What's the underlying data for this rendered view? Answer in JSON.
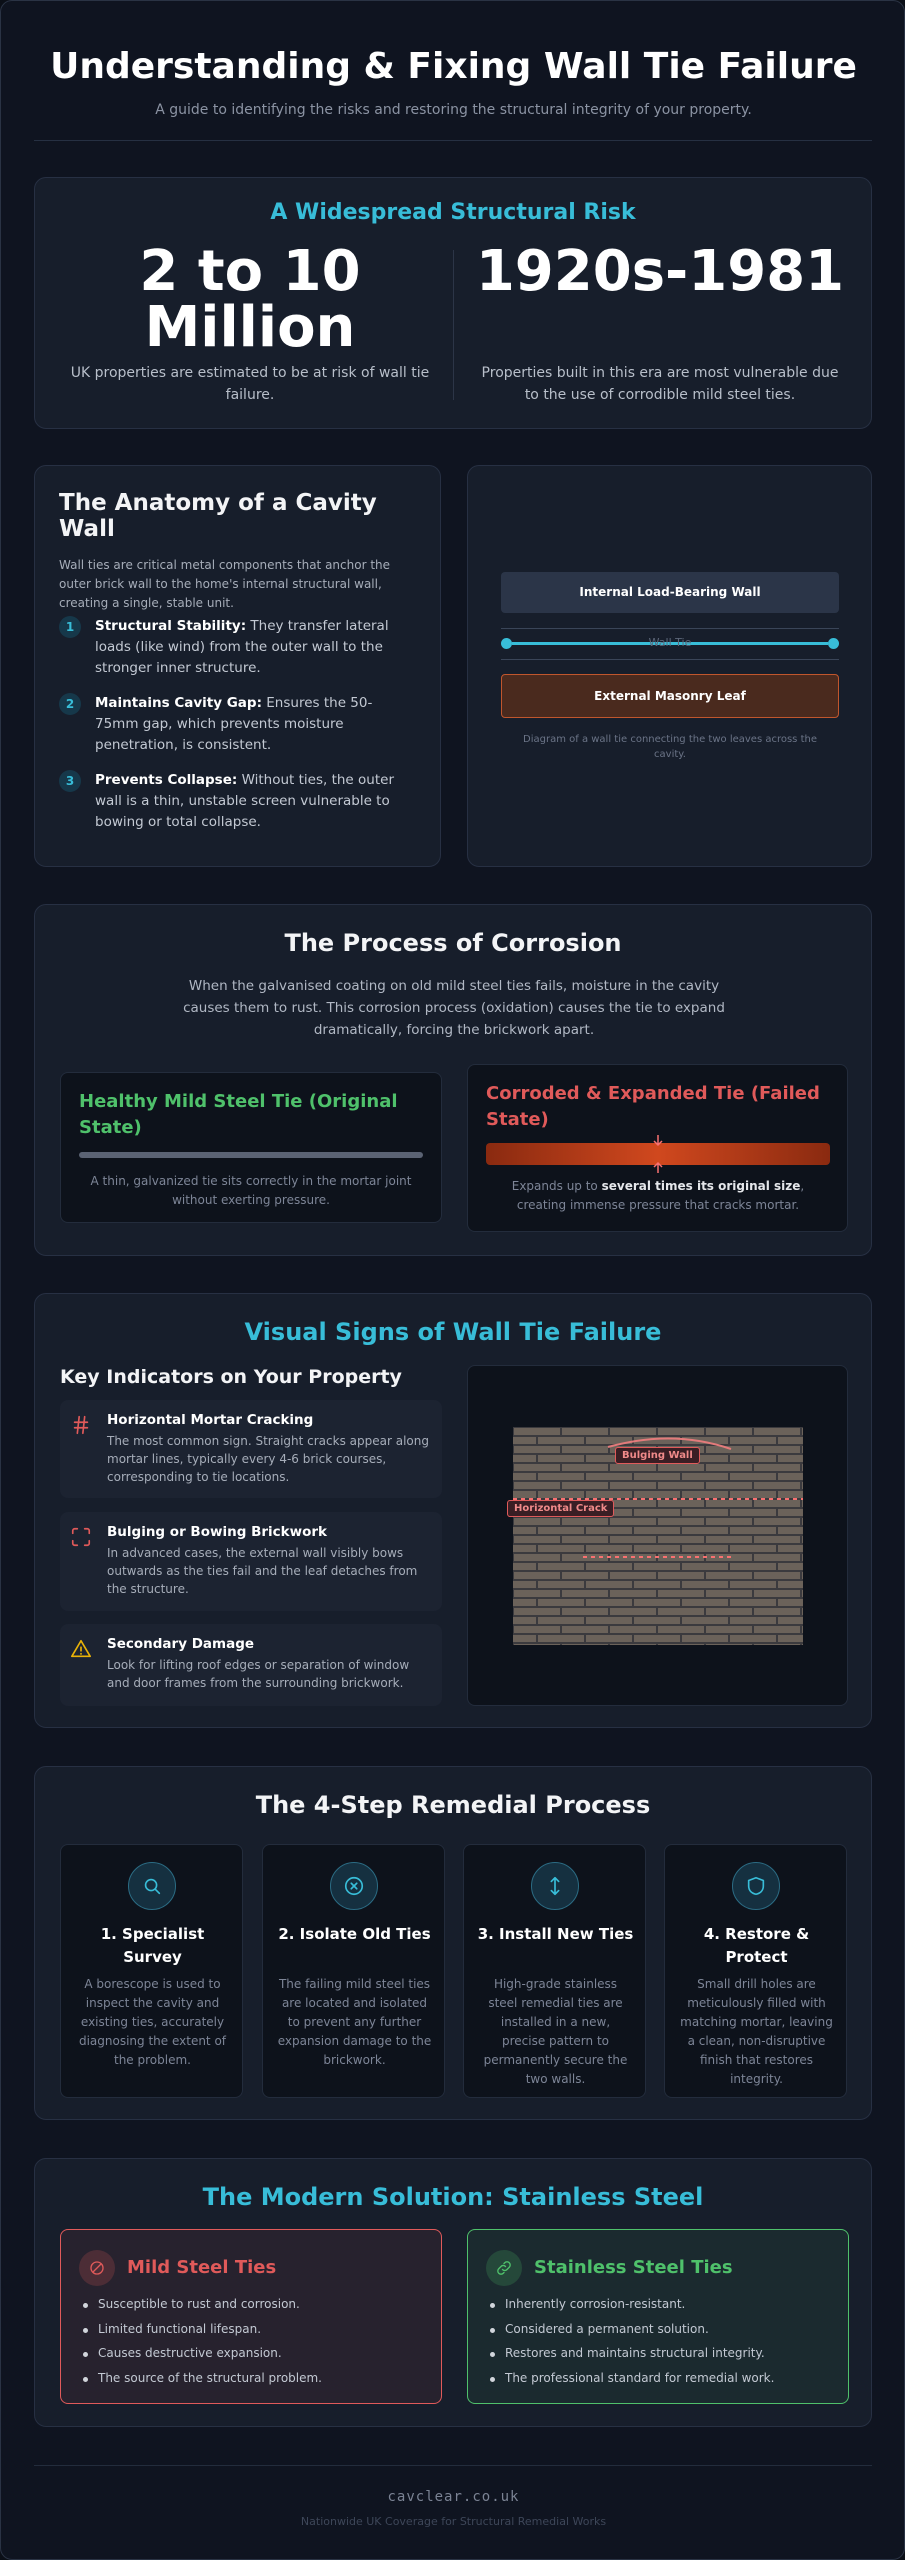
{
  "header": {
    "title": "Understanding & Fixing Wall Tie Failure",
    "subtitle": "A guide to identifying the risks and restoring the structural integrity of your property."
  },
  "risk": {
    "title": "A Widespread Structural Risk",
    "stats": [
      {
        "value": "2 to 10 Million",
        "description": "UK properties are estimated to be at risk of wall tie failure."
      },
      {
        "value": "1920s-1981",
        "description": "Properties built in this era are most vulnerable due to the use of corrodible mild steel ties."
      }
    ]
  },
  "anatomy": {
    "title": "The Anatomy of a Cavity Wall",
    "intro": "Wall ties are critical metal components that anchor the outer brick wall to the home's internal structural wall, creating a single, stable unit.",
    "points": [
      {
        "number": "1",
        "label": "Structural Stability:",
        "text": "They transfer lateral loads (like wind) from the outer wall to the stronger inner structure."
      },
      {
        "number": "2",
        "label": "Maintains Cavity Gap:",
        "text": "Ensures the 50-75mm gap, which prevents moisture penetration, is consistent."
      },
      {
        "number": "3",
        "label": "Prevents Collapse:",
        "text": "Without ties, the outer wall is a thin, unstable screen vulnerable to bowing or total collapse."
      }
    ],
    "diagram": {
      "inner": "Internal Load-Bearing Wall",
      "tie": "Wall Tie",
      "outer": "External Masonry Leaf",
      "caption": "Diagram of a wall tie connecting the two leaves across the cavity."
    }
  },
  "corrosion": {
    "title": "The Process of Corrosion",
    "intro": "When the galvanised coating on old mild steel ties fails, moisture in the cavity causes them to rust. This corrosion process (oxidation) causes the tie to expand dramatically, forcing the brickwork apart.",
    "healthy": {
      "title": "Healthy Mild Steel Tie (Original State)",
      "caption": "A thin, galvanized tie sits correctly in the mortar joint without exerting pressure."
    },
    "corroded": {
      "title": "Corroded & Expanded Tie (Failed State)",
      "caption_before": "Expands up to ",
      "caption_bold": "several times its original size",
      "caption_after": ", creating immense pressure that cracks mortar."
    }
  },
  "signs": {
    "title": "Visual Signs of Wall Tie Failure",
    "subtitle": "Key Indicators on Your Property",
    "indicators": [
      {
        "title": "Horizontal Mortar Cracking",
        "text": "The most common sign. Straight cracks appear along mortar lines, typically every 4-6 brick courses, corresponding to tie locations."
      },
      {
        "title": "Bulging or Bowing Brickwork",
        "text": "In advanced cases, the external wall visibly bows outwards as the ties fail and the leaf detaches from the structure."
      },
      {
        "title": "Secondary Damage",
        "text": "Look for lifting roof edges or separation of window and door frames from the surrounding brickwork."
      }
    ],
    "labels": {
      "bulging": "Bulging Wall",
      "crack": "Horizontal Crack"
    }
  },
  "remedial": {
    "title": "The 4-Step Remedial Process",
    "steps": [
      {
        "title": "1. Specialist Survey",
        "text": "A borescope is used to inspect the cavity and existing ties, accurately diagnosing the extent of the problem."
      },
      {
        "title": "2. Isolate Old Ties",
        "text": "The failing mild steel ties are located and isolated to prevent any further expansion damage to the brickwork."
      },
      {
        "title": "3. Install New Ties",
        "text": "High-grade stainless steel remedial ties are installed in a new, precise pattern to permanently secure the two walls."
      },
      {
        "title": "4. Restore & Protect",
        "text": "Small drill holes are meticulously filled with matching mortar, leaving a clean, non-disruptive finish that restores integrity."
      }
    ]
  },
  "solution": {
    "title": "The Modern Solution: Stainless Steel",
    "mild": {
      "title": "Mild Steel Ties",
      "items": [
        "Susceptible to rust and corrosion.",
        "Limited functional lifespan.",
        "Causes destructive expansion.",
        "The source of the structural problem."
      ]
    },
    "stainless": {
      "title": "Stainless Steel Ties",
      "items": [
        "Inherently corrosion-resistant.",
        "Considered a permanent solution.",
        "Restores and maintains structural integrity.",
        "The professional standard for remedial work."
      ]
    }
  },
  "footer": {
    "brand": "cavclear.co.uk",
    "note": "Nationwide UK Coverage for Structural Remedial Works"
  }
}
